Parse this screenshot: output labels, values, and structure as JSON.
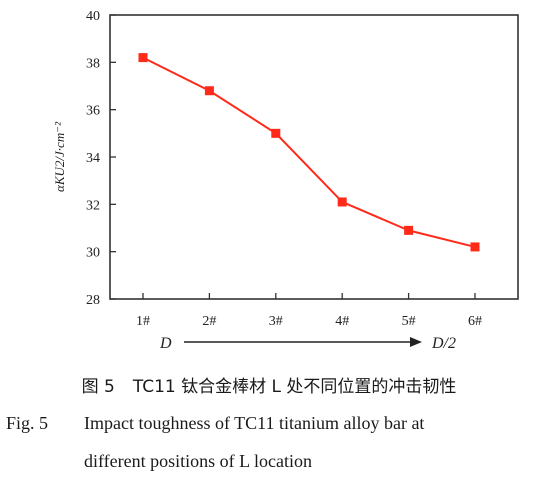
{
  "chart_data": {
    "type": "line",
    "categories": [
      "1#",
      "2#",
      "3#",
      "4#",
      "5#",
      "6#"
    ],
    "series": [
      {
        "name": "",
        "values": [
          38.2,
          36.8,
          35.0,
          32.1,
          30.9,
          30.2
        ],
        "color": "#ff2a1a"
      }
    ],
    "title": "",
    "xlabel": "",
    "ylabel": "αKU2/J·cm⁻²",
    "ylim": [
      28,
      40
    ],
    "yticks": [
      28,
      30,
      32,
      34,
      36,
      38,
      40
    ],
    "grid": false,
    "direction_start": "D",
    "direction_end": "D/2"
  },
  "caption": {
    "cn_label": "图 5",
    "cn_text": "TC11 钛合金棒材 L 处不同位置的冲击韧性",
    "en_label": "Fig. 5",
    "en_line1": "Impact toughness of TC11 titanium alloy bar at",
    "en_line2": "different positions of L location"
  }
}
